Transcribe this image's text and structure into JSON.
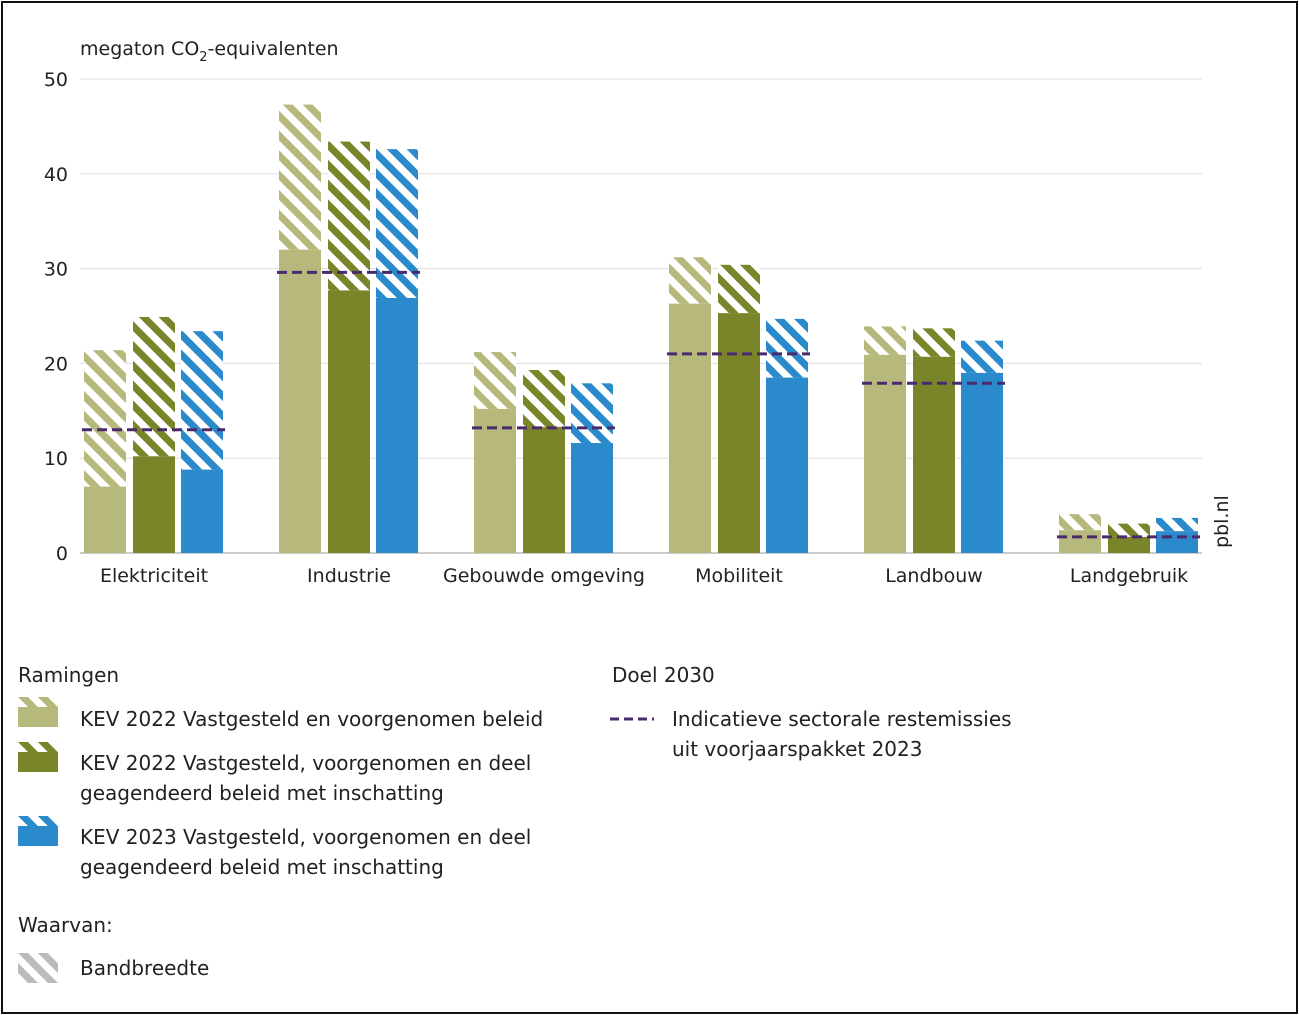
{
  "chart_data": {
    "type": "bar",
    "stacked_range": true,
    "ylabel": "megaton CO2-equivalenten",
    "ylabel_parts": {
      "main": "megaton CO",
      "sub": "2",
      "rest": "-equivalenten"
    },
    "ylim": [
      0,
      50
    ],
    "yticks": [
      0,
      10,
      20,
      30,
      40,
      50
    ],
    "grid": true,
    "categories": [
      "Elektriciteit",
      "Industrie",
      "Gebouwde omgeving",
      "Mobiliteit",
      "Landbouw",
      "Landgebruik"
    ],
    "series": [
      {
        "name": "KEV 2022 Vastgesteld en voorgenomen beleid",
        "color": "#b6b87c",
        "low": [
          7,
          32,
          15.2,
          26.3,
          20.9,
          2.4
        ],
        "high": [
          21.4,
          47.3,
          21.2,
          31.2,
          23.9,
          4.1
        ]
      },
      {
        "name": "KEV 2022 Vastgesteld, voorgenomen en deel geagendeerd beleid met inschatting",
        "color": "#7a8428",
        "low": [
          10.2,
          27.7,
          13.3,
          25.3,
          20.7,
          1.7
        ],
        "high": [
          24.9,
          43.4,
          19.3,
          30.4,
          23.7,
          3.1
        ]
      },
      {
        "name": "KEV 2023 Vastgesteld, voorgenomen en deel geagendeerd beleid met inschatting",
        "color": "#2a8acb",
        "low": [
          8.8,
          26.9,
          11.6,
          18.5,
          19.0,
          2.3
        ],
        "high": [
          23.4,
          42.6,
          17.9,
          24.7,
          22.4,
          3.7
        ]
      }
    ],
    "target": {
      "name": "Indicatieve sectorale restemissies uit voorjaarspakket 2023",
      "color": "#4a2a6e",
      "values": [
        13.0,
        29.6,
        13.2,
        21.0,
        17.9,
        1.7
      ]
    },
    "source": "pbl.nl"
  },
  "legend": {
    "ramingen_title": "Ramingen",
    "items": [
      {
        "line1": "KEV 2022 Vastgesteld en voorgenomen beleid",
        "line2": ""
      },
      {
        "line1": "KEV 2022 Vastgesteld, voorgenomen en deel",
        "line2": "geagendeerd beleid met inschatting"
      },
      {
        "line1": "KEV 2023 Vastgesteld, voorgenomen en deel",
        "line2": "geagendeerd beleid met inschatting"
      }
    ],
    "waarvan_title": "Waarvan:",
    "bandbreedte": "Bandbreedte",
    "doel_title": "Doel 2030",
    "target_line1": "Indicatieve sectorale restemissies",
    "target_line2": "uit voorjaarspakket 2023"
  }
}
